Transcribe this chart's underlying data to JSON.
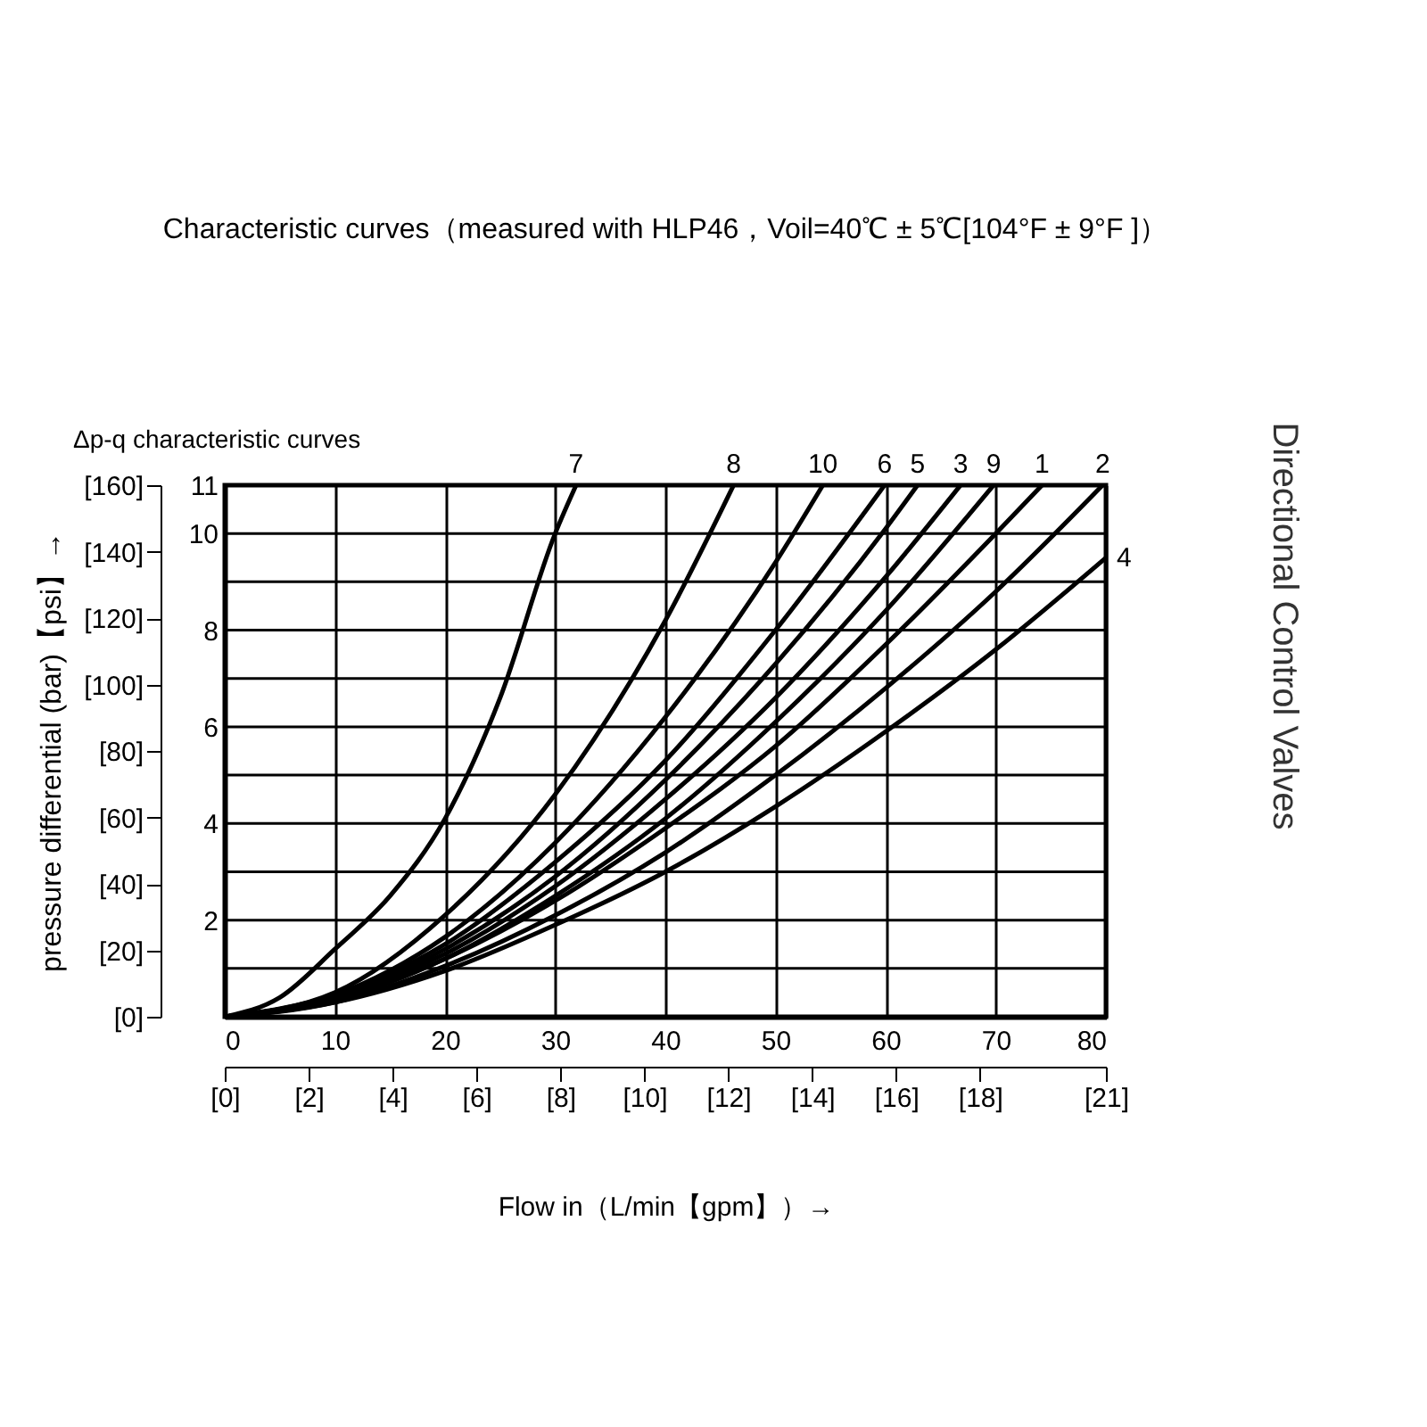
{
  "chart_data": {
    "type": "line",
    "title": "Characteristic curves（measured with HLP46，Voil=40℃ ± 5℃[104°F ± 9°F ]）",
    "subtitle": "Δp-q characteristic curves",
    "xlabel": "Flow in（L/min【gpm】）→",
    "y2label": "pressure differential (bar)【psi】→",
    "annotations": [
      "Directional Control Valves"
    ],
    "xlim": [
      0,
      80
    ],
    "xticks": [
      0,
      10,
      20,
      30,
      40,
      50,
      60,
      70,
      80
    ],
    "ylim": [
      0,
      11
    ],
    "yticks": [
      {
        "value": 0,
        "label": null
      },
      {
        "value": 1,
        "label": null
      },
      2,
      {
        "value": 3,
        "label": null
      },
      4,
      {
        "value": 5,
        "label": null
      },
      6,
      {
        "value": 7,
        "label": null
      },
      8,
      {
        "value": 9,
        "label": null
      },
      10,
      11
    ],
    "x2lim": [
      0,
      21
    ],
    "x2ticks": [
      {
        "value": 0,
        "label": "[0]"
      },
      {
        "value": 2,
        "label": "[2]"
      },
      {
        "value": 4,
        "label": "[4]"
      },
      {
        "value": 6,
        "label": "[6]"
      },
      {
        "value": 8,
        "label": "[8]"
      },
      {
        "value": 10,
        "label": "[10]"
      },
      {
        "value": 12,
        "label": "[12]"
      },
      {
        "value": 14,
        "label": "[14]"
      },
      {
        "value": 16,
        "label": "[16]"
      },
      {
        "value": 18,
        "label": "[18]"
      },
      {
        "value": 21,
        "label": "[21]"
      }
    ],
    "y2lim": [
      0,
      160
    ],
    "y2ticks": [
      {
        "value": 0,
        "label": "[0]"
      },
      {
        "value": 20,
        "label": "[20]"
      },
      {
        "value": 40,
        "label": "[40]"
      },
      {
        "value": 60,
        "label": "[60]"
      },
      {
        "value": 80,
        "label": "[80]"
      },
      {
        "value": 100,
        "label": "[100]"
      },
      {
        "value": 120,
        "label": "[120]"
      },
      {
        "value": 140,
        "label": "[140]"
      },
      {
        "value": 160,
        "label": "[160]"
      }
    ],
    "grid": true,
    "legend": false,
    "series": [
      {
        "name": "7",
        "color": "#000000",
        "x": [
          0,
          5,
          10,
          15,
          20,
          25,
          30,
          31.9
        ],
        "values": [
          0,
          0.4,
          1.4,
          2.5,
          4.1,
          6.6,
          10,
          11
        ]
      },
      {
        "name": "8",
        "color": "#000000",
        "x": [
          0,
          10,
          20,
          30,
          40,
          46.2
        ],
        "values": [
          0,
          0.5,
          2.1,
          4.6,
          8.2,
          11
        ]
      },
      {
        "name": "10",
        "color": "#000000",
        "x": [
          0,
          10,
          20,
          30,
          40,
          50,
          54.3
        ],
        "values": [
          0,
          0.45,
          1.65,
          3.6,
          6.2,
          9.4,
          11
        ]
      },
      {
        "name": "6",
        "color": "#000000",
        "x": [
          0,
          10,
          20,
          30,
          40,
          50,
          59.9
        ],
        "values": [
          0,
          0.45,
          1.5,
          3.2,
          5.3,
          8.0,
          11
        ]
      },
      {
        "name": "5",
        "color": "#000000",
        "x": [
          0,
          10,
          20,
          30,
          40,
          50,
          60,
          62.9
        ],
        "values": [
          0,
          0.4,
          1.4,
          2.9,
          4.9,
          7.3,
          10.1,
          11
        ]
      },
      {
        "name": "3",
        "color": "#000000",
        "x": [
          0,
          10,
          20,
          30,
          40,
          50,
          60,
          66.8
        ],
        "values": [
          0,
          0.4,
          1.3,
          2.7,
          4.5,
          6.6,
          9.1,
          11
        ]
      },
      {
        "name": "9",
        "color": "#000000",
        "x": [
          0,
          10,
          20,
          30,
          40,
          50,
          60,
          69.8
        ],
        "values": [
          0,
          0.35,
          1.2,
          2.5,
          4.1,
          6.1,
          8.4,
          11
        ]
      },
      {
        "name": "1",
        "color": "#000000",
        "x": [
          0,
          10,
          20,
          30,
          40,
          50,
          60,
          70,
          74.2
        ],
        "values": [
          0,
          0.35,
          1.2,
          2.4,
          3.9,
          5.6,
          7.7,
          10.0,
          11
        ]
      },
      {
        "name": "2",
        "color": "#000000",
        "x": [
          0,
          10,
          20,
          30,
          40,
          50,
          60,
          70,
          79.7
        ],
        "values": [
          0,
          0.3,
          1.05,
          2.1,
          3.4,
          5.0,
          6.8,
          8.8,
          11
        ]
      },
      {
        "name": "4",
        "color": "#000000",
        "x": [
          0,
          10,
          20,
          30,
          40,
          50,
          60,
          70,
          80
        ],
        "values": [
          0,
          0.3,
          0.95,
          1.9,
          3.0,
          4.35,
          5.9,
          7.6,
          9.5
        ]
      }
    ]
  }
}
